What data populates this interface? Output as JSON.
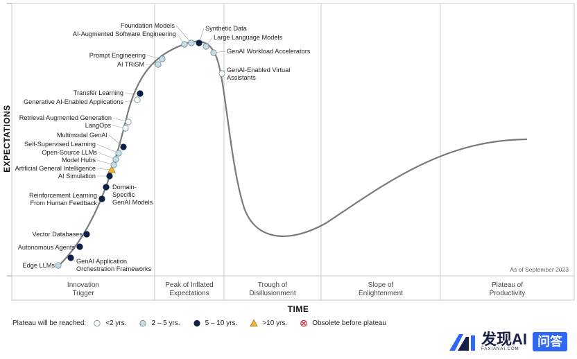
{
  "chart_data": {
    "type": "scatter",
    "title": "",
    "xlabel": "TIME",
    "ylabel": "EXPECTATIONS",
    "as_of": "As of September 2023",
    "phases": [
      [
        "Innovation",
        "Trigger"
      ],
      [
        "Peak of Inflated",
        "Expectations"
      ],
      [
        "Trough of",
        "Disillusionment"
      ],
      [
        "Slope of",
        "Enlightenment"
      ],
      [
        "Plateau of",
        "Productivity"
      ]
    ],
    "legend_title": "Plateau will be reached:",
    "legend": [
      {
        "key": "lt2",
        "label": "<2 yrs."
      },
      {
        "key": "2to5",
        "label": "2 – 5 yrs."
      },
      {
        "key": "5to10",
        "label": "5 – 10 yrs."
      },
      {
        "key": "gt10",
        "label": ">10 yrs."
      },
      {
        "key": "obsolete",
        "label": "Obsolete before plateau"
      }
    ],
    "colors": {
      "lt2": "#ffffff",
      "2to5": "#c6dde6",
      "5to10": "#0d2148",
      "gt10": "#f0b52a",
      "obsolete": "#d2283c",
      "curve": "#7a7a7a"
    },
    "technologies": [
      {
        "name": "Edge LLMs",
        "plateau": "2to5"
      },
      {
        "name": "GenAI Application Orchestration Frameworks",
        "plateau": "5to10"
      },
      {
        "name": "Autonomous Agents",
        "plateau": "5to10"
      },
      {
        "name": "Vector Databases",
        "plateau": "5to10"
      },
      {
        "name": "Reinforcement Learning From Human Feedback",
        "plateau": "5to10"
      },
      {
        "name": "Domain-Specific GenAI Models",
        "plateau": "5to10"
      },
      {
        "name": "AI Simulation",
        "plateau": "5to10"
      },
      {
        "name": "Artificial General Intelligence",
        "plateau": "gt10"
      },
      {
        "name": "Model Hubs",
        "plateau": "2to5"
      },
      {
        "name": "Open-Source LLMs",
        "plateau": "2to5"
      },
      {
        "name": "Self-Supervised Learning",
        "plateau": "2to5"
      },
      {
        "name": "Multimodal GenAI",
        "plateau": "5to10"
      },
      {
        "name": "LangOps",
        "plateau": "lt2"
      },
      {
        "name": "Retrieval Augmented Generation",
        "plateau": "lt2"
      },
      {
        "name": "Generative AI-Enabled Applications",
        "plateau": "lt2"
      },
      {
        "name": "Transfer Learning",
        "plateau": "5to10"
      },
      {
        "name": "AI TRiSM",
        "plateau": "2to5"
      },
      {
        "name": "Prompt Engineering",
        "plateau": "2to5"
      },
      {
        "name": "AI-Augmented Software Engineering",
        "plateau": "2to5"
      },
      {
        "name": "Foundation Models",
        "plateau": "2to5"
      },
      {
        "name": "Synthetic Data",
        "plateau": "5to10"
      },
      {
        "name": "Large Language Models",
        "plateau": "2to5"
      },
      {
        "name": "GenAI Workload Accelerators",
        "plateau": "2to5"
      },
      {
        "name": "GenAI-Enabled Virtual Assistants",
        "plateau": "lt2"
      }
    ]
  },
  "label_lines": {
    "Edge LLMs": [
      "Edge LLMs"
    ],
    "GenAI Application Orchestration Frameworks": [
      "GenAI Application",
      "Orchestration Frameworks"
    ],
    "Autonomous Agents": [
      "Autonomous Agents"
    ],
    "Vector Databases": [
      "Vector Databases"
    ],
    "Reinforcement Learning From Human Feedback": [
      "Reinforcement Learning",
      "From Human Feedback"
    ],
    "Domain-Specific GenAI Models": [
      "Domain-",
      "Specific",
      "GenAI Models"
    ],
    "AI Simulation": [
      "AI Simulation"
    ],
    "Artificial General Intelligence": [
      "Artificial General Intelligence"
    ],
    "Model Hubs": [
      "Model Hubs"
    ],
    "Open-Source LLMs": [
      "Open-Source LLMs"
    ],
    "Self-Supervised Learning": [
      "Self-Supervised Learning"
    ],
    "Multimodal GenAI": [
      "Multimodal GenAI"
    ],
    "LangOps": [
      "LangOps"
    ],
    "Retrieval Augmented Generation": [
      "Retrieval Augmented Generation"
    ],
    "Generative AI-Enabled Applications": [
      "Generative AI-Enabled Applications"
    ],
    "Transfer Learning": [
      "Transfer Learning"
    ],
    "AI TRiSM": [
      "AI TRiSM"
    ],
    "Prompt Engineering": [
      "Prompt Engineering"
    ],
    "AI-Augmented Software Engineering": [
      "AI-Augmented Software Engineering"
    ],
    "Foundation Models": [
      "Foundation Models"
    ],
    "Synthetic Data": [
      "Synthetic Data"
    ],
    "Large Language Models": [
      "Large Language Models"
    ],
    "GenAI Workload Accelerators": [
      "GenAI Workload Accelerators"
    ],
    "GenAI-Enabled Virtual Assistants": [
      "GenAI-Enabled Virtual",
      "Assistants"
    ]
  },
  "brand": {
    "name": "发现AI",
    "sub": "FAXIANAI.COM",
    "button": "问答"
  }
}
